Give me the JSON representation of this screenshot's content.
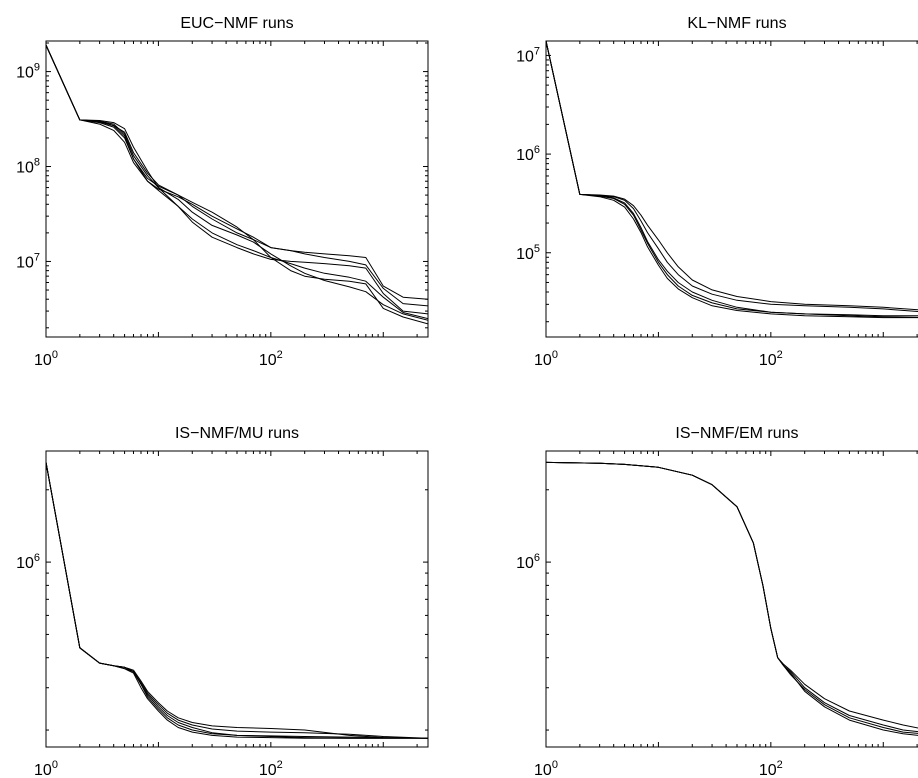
{
  "chart_data": [
    {
      "type": "line",
      "title": "EUC−NMF runs",
      "xlabel": "",
      "ylabel": "",
      "xscale": "log",
      "yscale": "log",
      "xlim": [
        1,
        2500
      ],
      "ylim": [
        1600000.0,
        2100000000.0
      ],
      "xticks": [
        {
          "value": 1,
          "base": "10",
          "exp": "0"
        },
        {
          "value": 100,
          "base": "10",
          "exp": "2"
        }
      ],
      "yticks": [
        {
          "value": 10000000.0,
          "base": "10",
          "exp": "7"
        },
        {
          "value": 100000000.0,
          "base": "10",
          "exp": "8"
        },
        {
          "value": 1000000000.0,
          "base": "10",
          "exp": "9"
        }
      ],
      "series": [
        {
          "x": [
            1,
            2,
            3,
            4,
            5,
            6,
            8,
            10,
            15,
            20,
            30,
            50,
            70,
            100,
            150,
            200,
            300,
            500,
            700,
            1000,
            1500,
            2500
          ],
          "y": [
            1900000000.0,
            310000000.0,
            300000000.0,
            280000000.0,
            220000000.0,
            130000000.0,
            80000000.0,
            60000000.0,
            45000000.0,
            33000000.0,
            24000000.0,
            19000000.0,
            16000000.0,
            12000000.0,
            9000000.0,
            7500000.0,
            6300000.0,
            5400000.0,
            4800000.0,
            3500000.0,
            2800000.0,
            2400000.0
          ]
        },
        {
          "x": [
            1,
            2,
            3,
            4,
            5,
            6,
            8,
            10,
            15,
            20,
            30,
            50,
            70,
            100,
            150,
            200,
            300,
            500,
            700,
            1000,
            1500,
            2500
          ],
          "y": [
            1900000000.0,
            310000000.0,
            290000000.0,
            260000000.0,
            200000000.0,
            120000000.0,
            75000000.0,
            62000000.0,
            50000000.0,
            42000000.0,
            33000000.0,
            23000000.0,
            17000000.0,
            11000000.0,
            8000000.0,
            7000000.0,
            6500000.0,
            6200000.0,
            5800000.0,
            3200000.0,
            2600000.0,
            2200000.0
          ]
        },
        {
          "x": [
            1,
            2,
            3,
            4,
            5,
            6,
            8,
            10,
            15,
            20,
            30,
            50,
            70,
            100,
            150,
            200,
            300,
            500,
            700,
            1000,
            1500,
            2500
          ],
          "y": [
            1900000000.0,
            310000000.0,
            305000000.0,
            290000000.0,
            250000000.0,
            160000000.0,
            90000000.0,
            60000000.0,
            38000000.0,
            26000000.0,
            18000000.0,
            14000000.0,
            12000000.0,
            10500000.0,
            10000000.0,
            9800000.0,
            9500000.0,
            9000000.0,
            8500000.0,
            4600000.0,
            3000000.0,
            2800000.0
          ]
        },
        {
          "x": [
            1,
            2,
            3,
            4,
            5,
            6,
            8,
            10,
            15,
            20,
            30,
            50,
            70,
            100,
            150,
            200,
            300,
            500,
            700,
            1000,
            1500,
            2500
          ],
          "y": [
            1900000000.0,
            310000000.0,
            280000000.0,
            240000000.0,
            180000000.0,
            110000000.0,
            70000000.0,
            58000000.0,
            48000000.0,
            40000000.0,
            30000000.0,
            22000000.0,
            18000000.0,
            14000000.0,
            13000000.0,
            12000000.0,
            11000000.0,
            10000000.0,
            9200000.0,
            5200000.0,
            3600000.0,
            3400000.0
          ]
        },
        {
          "x": [
            1,
            2,
            3,
            4,
            5,
            6,
            8,
            10,
            15,
            20,
            30,
            50,
            70,
            100,
            150,
            200,
            300,
            500,
            700,
            1000,
            1500,
            2500
          ],
          "y": [
            1900000000.0,
            310000000.0,
            300000000.0,
            270000000.0,
            210000000.0,
            120000000.0,
            70000000.0,
            56000000.0,
            38000000.0,
            28000000.0,
            20000000.0,
            15000000.0,
            13000000.0,
            11000000.0,
            9500000.0,
            8500000.0,
            7500000.0,
            6800000.0,
            6200000.0,
            4200000.0,
            2900000.0,
            2500000.0
          ]
        },
        {
          "x": [
            1,
            2,
            3,
            4,
            5,
            6,
            8,
            10,
            15,
            20,
            30,
            50,
            70,
            100,
            150,
            200,
            300,
            500,
            700,
            1000,
            1500,
            2500
          ],
          "y": [
            1900000000.0,
            310000000.0,
            295000000.0,
            270000000.0,
            230000000.0,
            140000000.0,
            85000000.0,
            64000000.0,
            50000000.0,
            38000000.0,
            28000000.0,
            20000000.0,
            17000000.0,
            14000000.0,
            13000000.0,
            12500000.0,
            12000000.0,
            11500000.0,
            11000000.0,
            5500000.0,
            4200000.0,
            4000000.0
          ]
        }
      ]
    },
    {
      "type": "line",
      "title": "KL−NMF runs",
      "xlabel": "",
      "ylabel": "",
      "xscale": "log",
      "yscale": "log",
      "xlim": [
        1,
        2500
      ],
      "ylim": [
        14000.0,
        14000000.0
      ],
      "xticks": [
        {
          "value": 1,
          "base": "10",
          "exp": "0"
        },
        {
          "value": 100,
          "base": "10",
          "exp": "2"
        }
      ],
      "yticks": [
        {
          "value": 100000.0,
          "base": "10",
          "exp": "5"
        },
        {
          "value": 1000000.0,
          "base": "10",
          "exp": "6"
        },
        {
          "value": 10000000.0,
          "base": "10",
          "exp": "7"
        }
      ],
      "series": [
        {
          "x": [
            1,
            2,
            3,
            4,
            5,
            6,
            7,
            8,
            10,
            12,
            15,
            20,
            30,
            50,
            100,
            200,
            500,
            1000,
            2500
          ],
          "y": [
            14000000.0,
            390000.0,
            380000.0,
            360000.0,
            320000.0,
            250000.0,
            180000.0,
            130000.0,
            85000.0,
            65000.0,
            50000.0,
            40000.0,
            33000.0,
            28000.0,
            25000.0,
            24000.0,
            23500.0,
            23000.0,
            23000.0
          ]
        },
        {
          "x": [
            1,
            2,
            3,
            4,
            5,
            6,
            7,
            8,
            10,
            12,
            15,
            20,
            30,
            50,
            100,
            200,
            500,
            1000,
            2500
          ],
          "y": [
            14000000.0,
            390000.0,
            385000.0,
            375000.0,
            350000.0,
            300000.0,
            240000.0,
            190000.0,
            135000.0,
            100000.0,
            72000.0,
            53000.0,
            42000.0,
            36000.0,
            32000.0,
            30000.0,
            29000.0,
            28000.0,
            26000.0
          ]
        },
        {
          "x": [
            1,
            2,
            3,
            4,
            5,
            6,
            7,
            8,
            10,
            12,
            15,
            20,
            30,
            50,
            100,
            200,
            500,
            1000,
            2500
          ],
          "y": [
            14000000.0,
            390000.0,
            370000.0,
            340000.0,
            290000.0,
            220000.0,
            160000.0,
            115000.0,
            75000.0,
            55000.0,
            43000.0,
            35000.0,
            29000.0,
            26000.0,
            24000.0,
            23000.0,
            22500.0,
            22000.0,
            22000.0
          ]
        },
        {
          "x": [
            1,
            2,
            3,
            4,
            5,
            6,
            7,
            8,
            10,
            12,
            15,
            20,
            30,
            50,
            100,
            200,
            500,
            1000,
            2500
          ],
          "y": [
            14000000.0,
            390000.0,
            380000.0,
            370000.0,
            340000.0,
            280000.0,
            210000.0,
            160000.0,
            110000.0,
            80000.0,
            60000.0,
            46000.0,
            38000.0,
            33000.0,
            30000.0,
            29000.0,
            28000.0,
            27000.0,
            25000.0
          ]
        },
        {
          "x": [
            1,
            2,
            3,
            4,
            5,
            6,
            7,
            8,
            10,
            12,
            15,
            20,
            30,
            50,
            100,
            200,
            500,
            1000,
            2500
          ],
          "y": [
            14000000.0,
            390000.0,
            375000.0,
            355000.0,
            310000.0,
            240000.0,
            170000.0,
            125000.0,
            80000.0,
            60000.0,
            46000.0,
            37000.0,
            31000.0,
            27000.0,
            25000.0,
            24000.0,
            23000.0,
            22500.0,
            22000.0
          ]
        }
      ]
    },
    {
      "type": "line",
      "title": "IS−NMF/MU runs",
      "xlabel": "",
      "ylabel": "",
      "xscale": "log",
      "yscale": "log",
      "xlim": [
        1,
        2500
      ],
      "ylim": [
        170000.0,
        2900000.0
      ],
      "xticks": [
        {
          "value": 1,
          "base": "10",
          "exp": "0"
        },
        {
          "value": 100,
          "base": "10",
          "exp": "2"
        }
      ],
      "yticks": [
        {
          "value": 1000000.0,
          "base": "10",
          "exp": "6"
        }
      ],
      "series": [
        {
          "x": [
            1,
            2,
            3,
            4,
            5,
            6,
            7,
            8,
            10,
            12,
            15,
            20,
            30,
            50,
            100,
            200,
            500,
            1000,
            2500
          ],
          "y": [
            2600000.0,
            440000.0,
            380000.0,
            370000.0,
            365000.0,
            350000.0,
            310000.0,
            280000.0,
            250000.0,
            230000.0,
            215000.0,
            205000.0,
            195000.0,
            190000.0,
            188000.0,
            186000.0,
            185000.0,
            185000.0,
            185000.0
          ]
        },
        {
          "x": [
            1,
            2,
            3,
            4,
            5,
            6,
            7,
            8,
            10,
            12,
            15,
            20,
            30,
            50,
            100,
            200,
            500,
            1000,
            2500
          ],
          "y": [
            2600000.0,
            440000.0,
            380000.0,
            370000.0,
            365000.0,
            355000.0,
            320000.0,
            290000.0,
            260000.0,
            240000.0,
            225000.0,
            215000.0,
            208000.0,
            205000.0,
            203000.0,
            200000.0,
            190000.0,
            186000.0,
            185000.0
          ]
        },
        {
          "x": [
            1,
            2,
            3,
            4,
            5,
            6,
            7,
            8,
            10,
            12,
            15,
            20,
            30,
            50,
            100,
            200,
            500,
            1000,
            2500
          ],
          "y": [
            2600000.0,
            440000.0,
            380000.0,
            370000.0,
            360000.0,
            345000.0,
            300000.0,
            270000.0,
            240000.0,
            220000.0,
            205000.0,
            196000.0,
            190000.0,
            187000.0,
            186000.0,
            185000.0,
            185000.0,
            185000.0,
            185000.0
          ]
        },
        {
          "x": [
            1,
            2,
            3,
            4,
            5,
            6,
            7,
            8,
            10,
            12,
            15,
            20,
            30,
            50,
            100,
            200,
            500,
            1000,
            2500
          ],
          "y": [
            2600000.0,
            440000.0,
            380000.0,
            370000.0,
            365000.0,
            350000.0,
            315000.0,
            285000.0,
            255000.0,
            235000.0,
            220000.0,
            210000.0,
            202000.0,
            198000.0,
            196000.0,
            195000.0,
            192000.0,
            188000.0,
            185000.0
          ]
        },
        {
          "x": [
            1,
            2,
            3,
            4,
            5,
            6,
            7,
            8,
            10,
            12,
            15,
            20,
            30,
            50,
            100,
            200,
            500,
            1000,
            2500
          ],
          "y": [
            2600000.0,
            440000.0,
            380000.0,
            370000.0,
            360000.0,
            350000.0,
            310000.0,
            275000.0,
            245000.0,
            225000.0,
            210000.0,
            200000.0,
            193000.0,
            190000.0,
            189000.0,
            188000.0,
            187000.0,
            186000.0,
            185000.0
          ]
        }
      ]
    },
    {
      "type": "line",
      "title": "IS−NMF/EM runs",
      "xlabel": "",
      "ylabel": "",
      "xscale": "log",
      "yscale": "log",
      "xlim": [
        1,
        2500
      ],
      "ylim": [
        170000.0,
        2900000.0
      ],
      "xticks": [
        {
          "value": 1,
          "base": "10",
          "exp": "0"
        },
        {
          "value": 100,
          "base": "10",
          "exp": "2"
        }
      ],
      "yticks": [
        {
          "value": 1000000.0,
          "base": "10",
          "exp": "6"
        }
      ],
      "series": [
        {
          "x": [
            1,
            3,
            5,
            10,
            20,
            30,
            50,
            70,
            85,
            100,
            115,
            130,
            150,
            200,
            300,
            500,
            1000,
            1500,
            2500
          ],
          "y": [
            2600000.0,
            2580000.0,
            2550000.0,
            2480000.0,
            2300000.0,
            2100000.0,
            1700000.0,
            1200000.0,
            800000.0,
            530000.0,
            400000.0,
            370000.0,
            350000.0,
            300000.0,
            260000.0,
            230000.0,
            210000.0,
            200000.0,
            195000.0
          ]
        },
        {
          "x": [
            1,
            3,
            5,
            10,
            20,
            30,
            50,
            70,
            85,
            100,
            115,
            130,
            150,
            200,
            300,
            500,
            1000,
            1500,
            2500
          ],
          "y": [
            2600000.0,
            2580000.0,
            2550000.0,
            2480000.0,
            2300000.0,
            2100000.0,
            1700000.0,
            1200000.0,
            800000.0,
            530000.0,
            400000.0,
            370000.0,
            345000.0,
            290000.0,
            250000.0,
            220000.0,
            200000.0,
            193000.0,
            188000.0
          ]
        },
        {
          "x": [
            1,
            3,
            5,
            10,
            20,
            30,
            50,
            70,
            85,
            100,
            115,
            130,
            150,
            200,
            300,
            500,
            1000,
            1500,
            2500
          ],
          "y": [
            2600000.0,
            2580000.0,
            2550000.0,
            2480000.0,
            2300000.0,
            2100000.0,
            1700000.0,
            1200000.0,
            800000.0,
            530000.0,
            400000.0,
            375000.0,
            355000.0,
            310000.0,
            270000.0,
            240000.0,
            220000.0,
            210000.0,
            200000.0
          ]
        },
        {
          "x": [
            1,
            3,
            5,
            10,
            20,
            30,
            50,
            70,
            85,
            100,
            115,
            130,
            150,
            200,
            300,
            500,
            1000,
            1500,
            2500
          ],
          "y": [
            2600000.0,
            2580000.0,
            2550000.0,
            2480000.0,
            2300000.0,
            2100000.0,
            1700000.0,
            1200000.0,
            800000.0,
            530000.0,
            400000.0,
            370000.0,
            340000.0,
            295000.0,
            255000.0,
            225000.0,
            205000.0,
            196000.0,
            192000.0
          ]
        }
      ]
    }
  ]
}
